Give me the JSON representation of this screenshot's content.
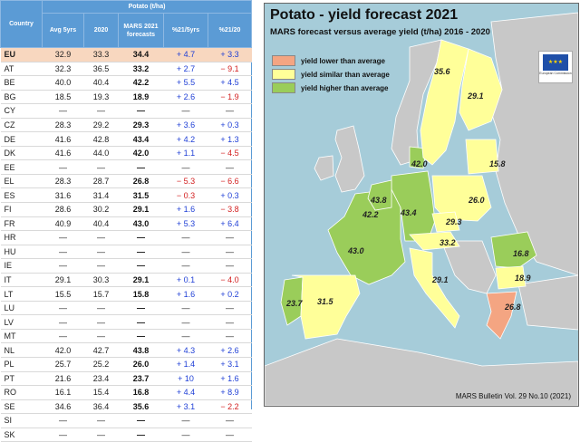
{
  "table": {
    "header_country": "Country",
    "header_group": "Potato (t/ha)",
    "headers": [
      "Avg 5yrs",
      "2020",
      "MARS 2021 forecasts",
      "%21/5yrs",
      "%21/20"
    ],
    "rows": [
      {
        "country": "EU",
        "avg": "32.9",
        "y2020": "33.3",
        "mars": "34.4",
        "p5": "+ 4.7",
        "p20": "+ 3.3",
        "s5": "pos",
        "s20": "pos"
      },
      {
        "country": "AT",
        "avg": "32.3",
        "y2020": "36.5",
        "mars": "33.2",
        "p5": "+ 2.7",
        "p20": "− 9.1",
        "s5": "pos",
        "s20": "neg"
      },
      {
        "country": "BE",
        "avg": "40.0",
        "y2020": "40.4",
        "mars": "42.2",
        "p5": "+ 5.5",
        "p20": "+ 4.5",
        "s5": "pos",
        "s20": "pos"
      },
      {
        "country": "BG",
        "avg": "18.5",
        "y2020": "19.3",
        "mars": "18.9",
        "p5": "+ 2.6",
        "p20": "− 1.9",
        "s5": "pos",
        "s20": "neg"
      },
      {
        "country": "CY",
        "avg": "—",
        "y2020": "—",
        "mars": "—",
        "p5": "—",
        "p20": "—",
        "s5": "dash",
        "s20": "dash"
      },
      {
        "country": "CZ",
        "avg": "28.3",
        "y2020": "29.2",
        "mars": "29.3",
        "p5": "+ 3.6",
        "p20": "+ 0.3",
        "s5": "pos",
        "s20": "pos"
      },
      {
        "country": "DE",
        "avg": "41.6",
        "y2020": "42.8",
        "mars": "43.4",
        "p5": "+ 4.2",
        "p20": "+ 1.3",
        "s5": "pos",
        "s20": "pos"
      },
      {
        "country": "DK",
        "avg": "41.6",
        "y2020": "44.0",
        "mars": "42.0",
        "p5": "+ 1.1",
        "p20": "− 4.5",
        "s5": "pos",
        "s20": "neg"
      },
      {
        "country": "EE",
        "avg": "—",
        "y2020": "—",
        "mars": "—",
        "p5": "—",
        "p20": "—",
        "s5": "dash",
        "s20": "dash"
      },
      {
        "country": "EL",
        "avg": "28.3",
        "y2020": "28.7",
        "mars": "26.8",
        "p5": "− 5.3",
        "p20": "− 6.6",
        "s5": "neg",
        "s20": "neg"
      },
      {
        "country": "ES",
        "avg": "31.6",
        "y2020": "31.4",
        "mars": "31.5",
        "p5": "− 0.3",
        "p20": "+ 0.3",
        "s5": "neg",
        "s20": "pos"
      },
      {
        "country": "FI",
        "avg": "28.6",
        "y2020": "30.2",
        "mars": "29.1",
        "p5": "+ 1.6",
        "p20": "− 3.8",
        "s5": "pos",
        "s20": "neg"
      },
      {
        "country": "FR",
        "avg": "40.9",
        "y2020": "40.4",
        "mars": "43.0",
        "p5": "+ 5.3",
        "p20": "+ 6.4",
        "s5": "pos",
        "s20": "pos"
      },
      {
        "country": "HR",
        "avg": "—",
        "y2020": "—",
        "mars": "—",
        "p5": "—",
        "p20": "—",
        "s5": "dash",
        "s20": "dash"
      },
      {
        "country": "HU",
        "avg": "—",
        "y2020": "—",
        "mars": "—",
        "p5": "—",
        "p20": "—",
        "s5": "dash",
        "s20": "dash"
      },
      {
        "country": "IE",
        "avg": "—",
        "y2020": "—",
        "mars": "—",
        "p5": "—",
        "p20": "—",
        "s5": "dash",
        "s20": "dash"
      },
      {
        "country": "IT",
        "avg": "29.1",
        "y2020": "30.3",
        "mars": "29.1",
        "p5": "+ 0.1",
        "p20": "− 4.0",
        "s5": "pos",
        "s20": "neg"
      },
      {
        "country": "LT",
        "avg": "15.5",
        "y2020": "15.7",
        "mars": "15.8",
        "p5": "+ 1.6",
        "p20": "+ 0.2",
        "s5": "pos",
        "s20": "pos"
      },
      {
        "country": "LU",
        "avg": "—",
        "y2020": "—",
        "mars": "—",
        "p5": "—",
        "p20": "—",
        "s5": "dash",
        "s20": "dash"
      },
      {
        "country": "LV",
        "avg": "—",
        "y2020": "—",
        "mars": "—",
        "p5": "—",
        "p20": "—",
        "s5": "dash",
        "s20": "dash"
      },
      {
        "country": "MT",
        "avg": "—",
        "y2020": "—",
        "mars": "—",
        "p5": "—",
        "p20": "—",
        "s5": "dash",
        "s20": "dash"
      },
      {
        "country": "NL",
        "avg": "42.0",
        "y2020": "42.7",
        "mars": "43.8",
        "p5": "+ 4.3",
        "p20": "+ 2.6",
        "s5": "pos",
        "s20": "pos"
      },
      {
        "country": "PL",
        "avg": "25.7",
        "y2020": "25.2",
        "mars": "26.0",
        "p5": "+ 1.4",
        "p20": "+ 3.1",
        "s5": "pos",
        "s20": "pos"
      },
      {
        "country": "PT",
        "avg": "21.6",
        "y2020": "23.4",
        "mars": "23.7",
        "p5": "+ 10",
        "p20": "+ 1.6",
        "s5": "pos",
        "s20": "pos"
      },
      {
        "country": "RO",
        "avg": "16.1",
        "y2020": "15.4",
        "mars": "16.8",
        "p5": "+ 4.4",
        "p20": "+ 8.9",
        "s5": "pos",
        "s20": "pos"
      },
      {
        "country": "SE",
        "avg": "34.6",
        "y2020": "36.4",
        "mars": "35.6",
        "p5": "+ 3.1",
        "p20": "− 2.2",
        "s5": "pos",
        "s20": "neg"
      },
      {
        "country": "SI",
        "avg": "—",
        "y2020": "—",
        "mars": "—",
        "p5": "—",
        "p20": "—",
        "s5": "dash",
        "s20": "dash"
      },
      {
        "country": "SK",
        "avg": "—",
        "y2020": "—",
        "mars": "—",
        "p5": "—",
        "p20": "—",
        "s5": "dash",
        "s20": "dash"
      }
    ]
  },
  "map": {
    "title": "Potato - yield forecast 2021",
    "subtitle": "MARS forecast versus average yield (t/ha) 2016 - 2020",
    "legend": [
      {
        "label": "yield lower than average",
        "color": "#f4a582"
      },
      {
        "label": "yield similar than average",
        "color": "#ffff99"
      },
      {
        "label": "yield higher than average",
        "color": "#9acd5a"
      }
    ],
    "flag_label": "European Commission",
    "bulletin": "MARS Bulletin Vol. 29 No.10 (2021)",
    "values": [
      {
        "id": "se",
        "text": "35.6"
      },
      {
        "id": "fi",
        "text": "29.1"
      },
      {
        "id": "dk",
        "text": "42.0"
      },
      {
        "id": "lt",
        "text": "15.8"
      },
      {
        "id": "nl",
        "text": "43.8"
      },
      {
        "id": "be",
        "text": "42.2"
      },
      {
        "id": "de",
        "text": "43.4"
      },
      {
        "id": "pl",
        "text": "26.0"
      },
      {
        "id": "cz",
        "text": "29.3"
      },
      {
        "id": "at",
        "text": "33.2"
      },
      {
        "id": "fr",
        "text": "43.0"
      },
      {
        "id": "ro",
        "text": "16.8"
      },
      {
        "id": "bg",
        "text": "18.9"
      },
      {
        "id": "it",
        "text": "29.1"
      },
      {
        "id": "pt",
        "text": "23.7"
      },
      {
        "id": "es",
        "text": "31.5"
      },
      {
        "id": "el",
        "text": "26.8"
      }
    ],
    "colors": {
      "sea": "#a6ccd9",
      "land": "#c8c8c8",
      "lower": "#f4a582",
      "similar": "#ffff99",
      "higher": "#9acd5a"
    }
  }
}
